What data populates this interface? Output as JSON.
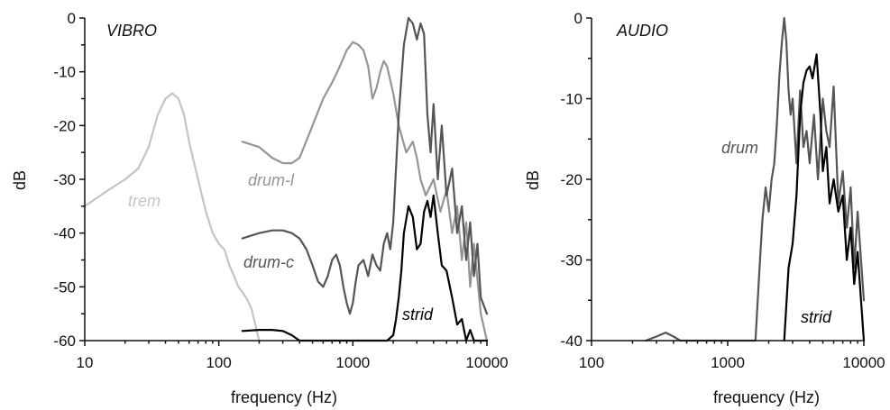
{
  "chart_data": [
    {
      "type": "line",
      "title": "VIBRO",
      "xlabel": "frequency (Hz)",
      "ylabel": "dB",
      "xscale": "log",
      "xlim": [
        10,
        10000
      ],
      "ylim": [
        -60,
        0
      ],
      "xticks": [
        10,
        100,
        1000,
        10000
      ],
      "xtick_labels": [
        "10",
        "100",
        "1000",
        "10000"
      ],
      "yticks": [
        0,
        -10,
        -20,
        -30,
        -40,
        -50,
        -60
      ],
      "ytick_labels": [
        "0",
        "-10",
        "-20",
        "-30",
        "-40",
        "-50",
        "-60"
      ],
      "grid": false,
      "legend": "none",
      "series": [
        {
          "name": "trem",
          "color": "#c4c4c4",
          "x": [
            10,
            15,
            20,
            25,
            30,
            35,
            40,
            45,
            50,
            55,
            60,
            70,
            80,
            90,
            100,
            110,
            120,
            130,
            140,
            150,
            160,
            175,
            200
          ],
          "y": [
            -35,
            -32,
            -30,
            -28,
            -24,
            -18,
            -15,
            -14,
            -15,
            -18,
            -23,
            -30,
            -36,
            -40,
            -42,
            -43,
            -46,
            -48,
            -50,
            -51,
            -52,
            -54,
            -60
          ]
        },
        {
          "name": "drum-l",
          "color": "#959595",
          "x": [
            150,
            200,
            250,
            300,
            350,
            400,
            500,
            600,
            700,
            800,
            900,
            1000,
            1100,
            1200,
            1300,
            1400,
            1500,
            1600,
            1700,
            1800,
            2000,
            2200,
            2500,
            2800,
            3000,
            3200,
            3500,
            4000,
            4500,
            5000,
            5500,
            6000,
            6500,
            7000,
            7500,
            8000,
            9000,
            10000
          ],
          "y": [
            -23,
            -24,
            -26,
            -27,
            -27,
            -26,
            -20,
            -15,
            -12,
            -9,
            -6,
            -4.5,
            -5,
            -6,
            -9,
            -15,
            -13,
            -10,
            -8,
            -9,
            -14,
            -20,
            -25,
            -23,
            -26,
            -30,
            -33,
            -30,
            -36,
            -32,
            -40,
            -35,
            -45,
            -38,
            -50,
            -42,
            -55,
            -60
          ]
        },
        {
          "name": "drum-c",
          "color": "#555555",
          "x": [
            150,
            200,
            250,
            300,
            350,
            400,
            450,
            500,
            550,
            600,
            650,
            700,
            750,
            800,
            850,
            900,
            950,
            1000,
            1050,
            1100,
            1200,
            1300,
            1400,
            1500,
            1600,
            1700,
            1800,
            1900,
            2000,
            2200,
            2400,
            2600,
            2800,
            3000,
            3200,
            3400,
            3600,
            3800,
            4000,
            4300,
            4600,
            5000,
            5500,
            6000,
            6500,
            7000,
            7500,
            8000,
            8500,
            9000,
            10000
          ],
          "y": [
            -41,
            -40,
            -39.5,
            -39.5,
            -40,
            -41,
            -43,
            -46,
            -49,
            -50,
            -48,
            -45,
            -44,
            -46,
            -50,
            -53,
            -55,
            -53,
            -49,
            -46,
            -45,
            -48,
            -44,
            -46,
            -47,
            -42,
            -40,
            -43,
            -38,
            -18,
            -5,
            0,
            -1,
            -4,
            -1,
            -3,
            -18,
            -25,
            -16,
            -30,
            -20,
            -33,
            -28,
            -40,
            -35,
            -45,
            -38,
            -48,
            -42,
            -52,
            -55
          ]
        },
        {
          "name": "strid",
          "color": "#000000",
          "x": [
            150,
            200,
            250,
            300,
            350,
            400,
            1800,
            2000,
            2100,
            2200,
            2300,
            2400,
            2600,
            2800,
            3000,
            3200,
            3400,
            3600,
            3800,
            4000,
            4300,
            4600,
            5000,
            5500,
            6000,
            6500,
            7000,
            7500,
            8000,
            9000,
            10000
          ],
          "y": [
            -58.2,
            -58,
            -58,
            -58.2,
            -59,
            -60,
            -60,
            -59,
            -56,
            -52,
            -47,
            -40,
            -35,
            -37,
            -43,
            -42,
            -36,
            -34,
            -37,
            -33,
            -40,
            -46,
            -47,
            -52,
            -57,
            -56,
            -60,
            -58,
            -60,
            -60,
            -60
          ]
        }
      ],
      "annotations": [
        "trem",
        "drum-l",
        "drum-c",
        "strid"
      ]
    },
    {
      "type": "line",
      "title": "AUDIO",
      "xlabel": "frequency (Hz)",
      "ylabel": "dB",
      "xscale": "log",
      "xlim": [
        100,
        10000
      ],
      "ylim": [
        -40,
        0
      ],
      "xticks": [
        100,
        1000,
        10000
      ],
      "xtick_labels": [
        "100",
        "1000",
        "10000"
      ],
      "yticks": [
        0,
        -10,
        -20,
        -30,
        -40
      ],
      "ytick_labels": [
        "0",
        "-10",
        "-20",
        "-30",
        "-40"
      ],
      "grid": false,
      "legend": "none",
      "series": [
        {
          "name": "drum",
          "color": "#555555",
          "x": [
            250,
            300,
            350,
            400,
            450,
            1600,
            1700,
            1800,
            1900,
            2000,
            2100,
            2200,
            2300,
            2400,
            2500,
            2600,
            2700,
            2800,
            2900,
            3000,
            3200,
            3400,
            3600,
            3800,
            4000,
            4300,
            4600,
            5000,
            5300,
            5600,
            6000,
            6500,
            7000,
            7500,
            8000,
            8500,
            9000,
            10000
          ],
          "y": [
            -40,
            -39.5,
            -39,
            -39.5,
            -40,
            -40,
            -32,
            -25,
            -21,
            -24,
            -20,
            -18,
            -13,
            -7,
            -3,
            0,
            -3,
            -9,
            -12,
            -10,
            -18,
            -9,
            -16,
            -14,
            -18,
            -12,
            -20,
            -10,
            -14,
            -16,
            -8.5,
            -23,
            -19,
            -26,
            -21,
            -31,
            -24,
            -35
          ]
        },
        {
          "name": "strid",
          "color": "#000000",
          "x": [
            2600,
            2800,
            3000,
            3200,
            3400,
            3600,
            3800,
            4000,
            4200,
            4500,
            4800,
            5000,
            5300,
            5600,
            6000,
            6500,
            7000,
            7500,
            8000,
            8500,
            9000,
            10000
          ],
          "y": [
            -40,
            -31,
            -28,
            -22,
            -12,
            -8,
            -6.5,
            -6,
            -7.5,
            -4.5,
            -12,
            -19,
            -16,
            -23,
            -20,
            -24,
            -22,
            -30,
            -26,
            -33,
            -29,
            -40
          ]
        }
      ],
      "annotations": [
        "drum",
        "strid"
      ]
    }
  ]
}
